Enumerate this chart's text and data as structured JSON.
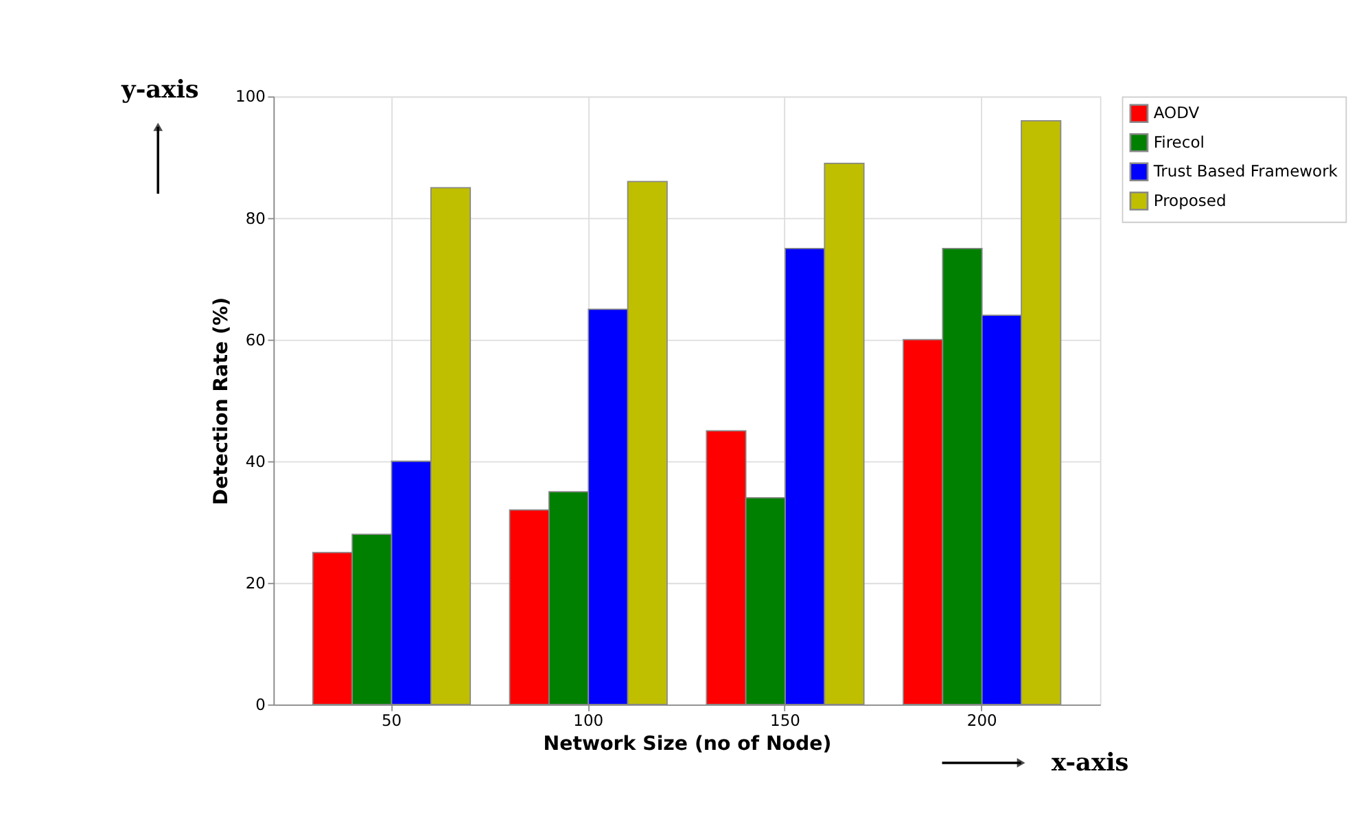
{
  "chart_data": {
    "type": "bar",
    "xlabel": "Network Size (no of Node)",
    "ylabel": "Detection Rate (%)",
    "categories": [
      "50",
      "100",
      "150",
      "200"
    ],
    "series": [
      {
        "name": "AODV",
        "color": "#ff0000",
        "values": [
          25,
          32,
          45,
          60
        ]
      },
      {
        "name": "Firecol",
        "color": "#008000",
        "values": [
          28,
          35,
          34,
          75
        ]
      },
      {
        "name": "Trust Based Framework",
        "color": "#0000ff",
        "values": [
          40,
          65,
          75,
          64
        ]
      },
      {
        "name": "Proposed",
        "color": "#bfbf00",
        "values": [
          85,
          86,
          89,
          96
        ]
      }
    ],
    "ylim": [
      0,
      100
    ],
    "yticks": [
      0,
      20,
      40,
      60,
      80,
      100
    ],
    "grid": true,
    "legend": "top right",
    "annotations": [
      "y-axis",
      "x-axis"
    ]
  }
}
